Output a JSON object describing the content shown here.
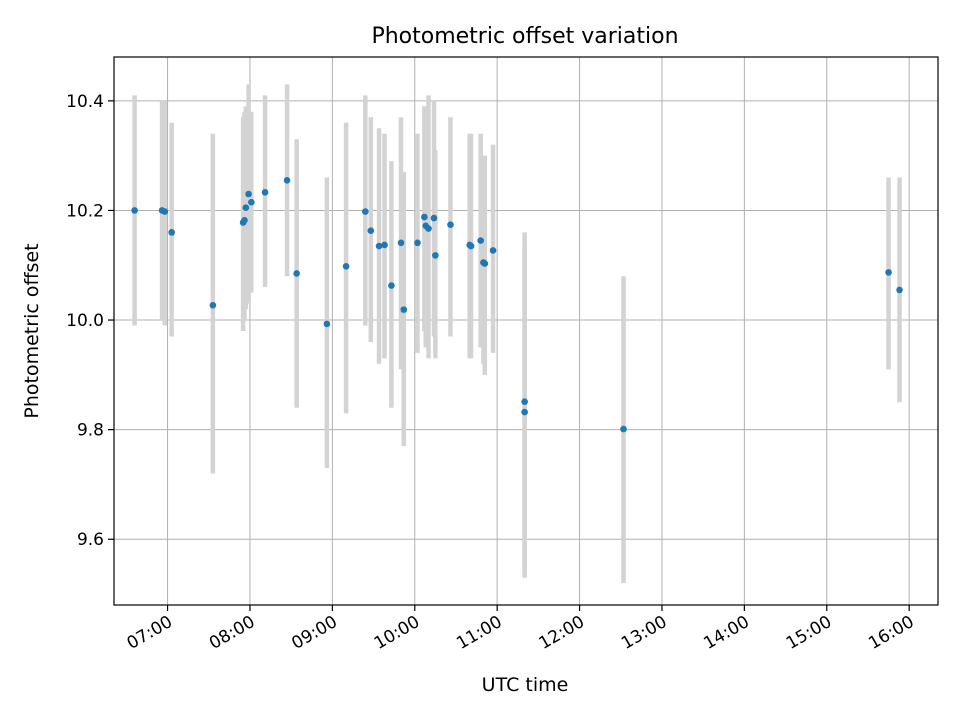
{
  "colors": {
    "point": "#1f77b4",
    "errorbar": "#d3d3d3",
    "grid": "#b0b0b0",
    "axis": "#000000"
  },
  "chart_data": {
    "type": "scatter",
    "title": "Photometric offset variation",
    "xlabel": "UTC time",
    "ylabel": "Photometric offset",
    "xlim": [
      "06:21",
      "16:21"
    ],
    "ylim": [
      9.48,
      10.48
    ],
    "grid": true,
    "x_ticks": [
      "07:00",
      "08:00",
      "09:00",
      "10:00",
      "11:00",
      "12:00",
      "13:00",
      "14:00",
      "15:00",
      "16:00"
    ],
    "y_ticks": [
      "9.6",
      "9.8",
      "10.0",
      "10.2",
      "10.4"
    ],
    "points": [
      {
        "x": "06:36",
        "y": 10.2,
        "ylow": 9.99,
        "yhigh": 10.41
      },
      {
        "x": "06:56",
        "y": 10.2,
        "ylow": 10.0,
        "yhigh": 10.4
      },
      {
        "x": "06:58",
        "y": 10.198,
        "ylow": 9.99,
        "yhigh": 10.4
      },
      {
        "x": "07:03",
        "y": 10.16,
        "ylow": 9.97,
        "yhigh": 10.36
      },
      {
        "x": "07:33",
        "y": 10.027,
        "ylow": 9.72,
        "yhigh": 10.34
      },
      {
        "x": "07:55",
        "y": 10.178,
        "ylow": 9.98,
        "yhigh": 10.37
      },
      {
        "x": "07:56",
        "y": 10.182,
        "ylow": 10.0,
        "yhigh": 10.38
      },
      {
        "x": "07:57",
        "y": 10.205,
        "ylow": 10.02,
        "yhigh": 10.39
      },
      {
        "x": "07:59",
        "y": 10.23,
        "ylow": 10.03,
        "yhigh": 10.43
      },
      {
        "x": "08:01",
        "y": 10.215,
        "ylow": 10.05,
        "yhigh": 10.38
      },
      {
        "x": "08:11",
        "y": 10.233,
        "ylow": 10.06,
        "yhigh": 10.41
      },
      {
        "x": "08:27",
        "y": 10.255,
        "ylow": 10.08,
        "yhigh": 10.43
      },
      {
        "x": "08:34",
        "y": 10.085,
        "ylow": 9.84,
        "yhigh": 10.33
      },
      {
        "x": "08:56",
        "y": 9.993,
        "ylow": 9.73,
        "yhigh": 10.26
      },
      {
        "x": "09:10",
        "y": 10.098,
        "ylow": 9.83,
        "yhigh": 10.36
      },
      {
        "x": "09:24",
        "y": 10.198,
        "ylow": 9.99,
        "yhigh": 10.41
      },
      {
        "x": "09:28",
        "y": 10.163,
        "ylow": 9.96,
        "yhigh": 10.37
      },
      {
        "x": "09:34",
        "y": 10.135,
        "ylow": 9.92,
        "yhigh": 10.35
      },
      {
        "x": "09:38",
        "y": 10.137,
        "ylow": 9.93,
        "yhigh": 10.34
      },
      {
        "x": "09:43",
        "y": 10.063,
        "ylow": 9.84,
        "yhigh": 10.29
      },
      {
        "x": "09:50",
        "y": 10.141,
        "ylow": 9.91,
        "yhigh": 10.37
      },
      {
        "x": "09:52",
        "y": 10.019,
        "ylow": 9.77,
        "yhigh": 10.27
      },
      {
        "x": "10:02",
        "y": 10.141,
        "ylow": 9.94,
        "yhigh": 10.34
      },
      {
        "x": "10:07",
        "y": 10.188,
        "ylow": 9.98,
        "yhigh": 10.39
      },
      {
        "x": "10:08",
        "y": 10.172,
        "ylow": 9.95,
        "yhigh": 10.39
      },
      {
        "x": "10:10",
        "y": 10.167,
        "ylow": 9.93,
        "yhigh": 10.41
      },
      {
        "x": "10:14",
        "y": 10.186,
        "ylow": 9.97,
        "yhigh": 10.4
      },
      {
        "x": "10:15",
        "y": 10.118,
        "ylow": 9.93,
        "yhigh": 10.31
      },
      {
        "x": "10:26",
        "y": 10.174,
        "ylow": 9.97,
        "yhigh": 10.37
      },
      {
        "x": "10:40",
        "y": 10.137,
        "ylow": 9.93,
        "yhigh": 10.34
      },
      {
        "x": "10:41",
        "y": 10.135,
        "ylow": 9.93,
        "yhigh": 10.34
      },
      {
        "x": "10:48",
        "y": 10.145,
        "ylow": 9.95,
        "yhigh": 10.34
      },
      {
        "x": "10:50",
        "y": 10.105,
        "ylow": 9.92,
        "yhigh": 10.29
      },
      {
        "x": "10:51",
        "y": 10.103,
        "ylow": 9.9,
        "yhigh": 10.3
      },
      {
        "x": "10:57",
        "y": 10.127,
        "ylow": 9.94,
        "yhigh": 10.32
      },
      {
        "x": "11:20",
        "y": 9.851,
        "ylow": 9.54,
        "yhigh": 10.16
      },
      {
        "x": "11:20",
        "y": 9.832,
        "ylow": 9.53,
        "yhigh": 10.13
      },
      {
        "x": "12:32",
        "y": 9.801,
        "ylow": 9.52,
        "yhigh": 10.08
      },
      {
        "x": "15:45",
        "y": 10.087,
        "ylow": 9.91,
        "yhigh": 10.26
      },
      {
        "x": "15:53",
        "y": 10.055,
        "ylow": 9.85,
        "yhigh": 10.26
      }
    ]
  }
}
